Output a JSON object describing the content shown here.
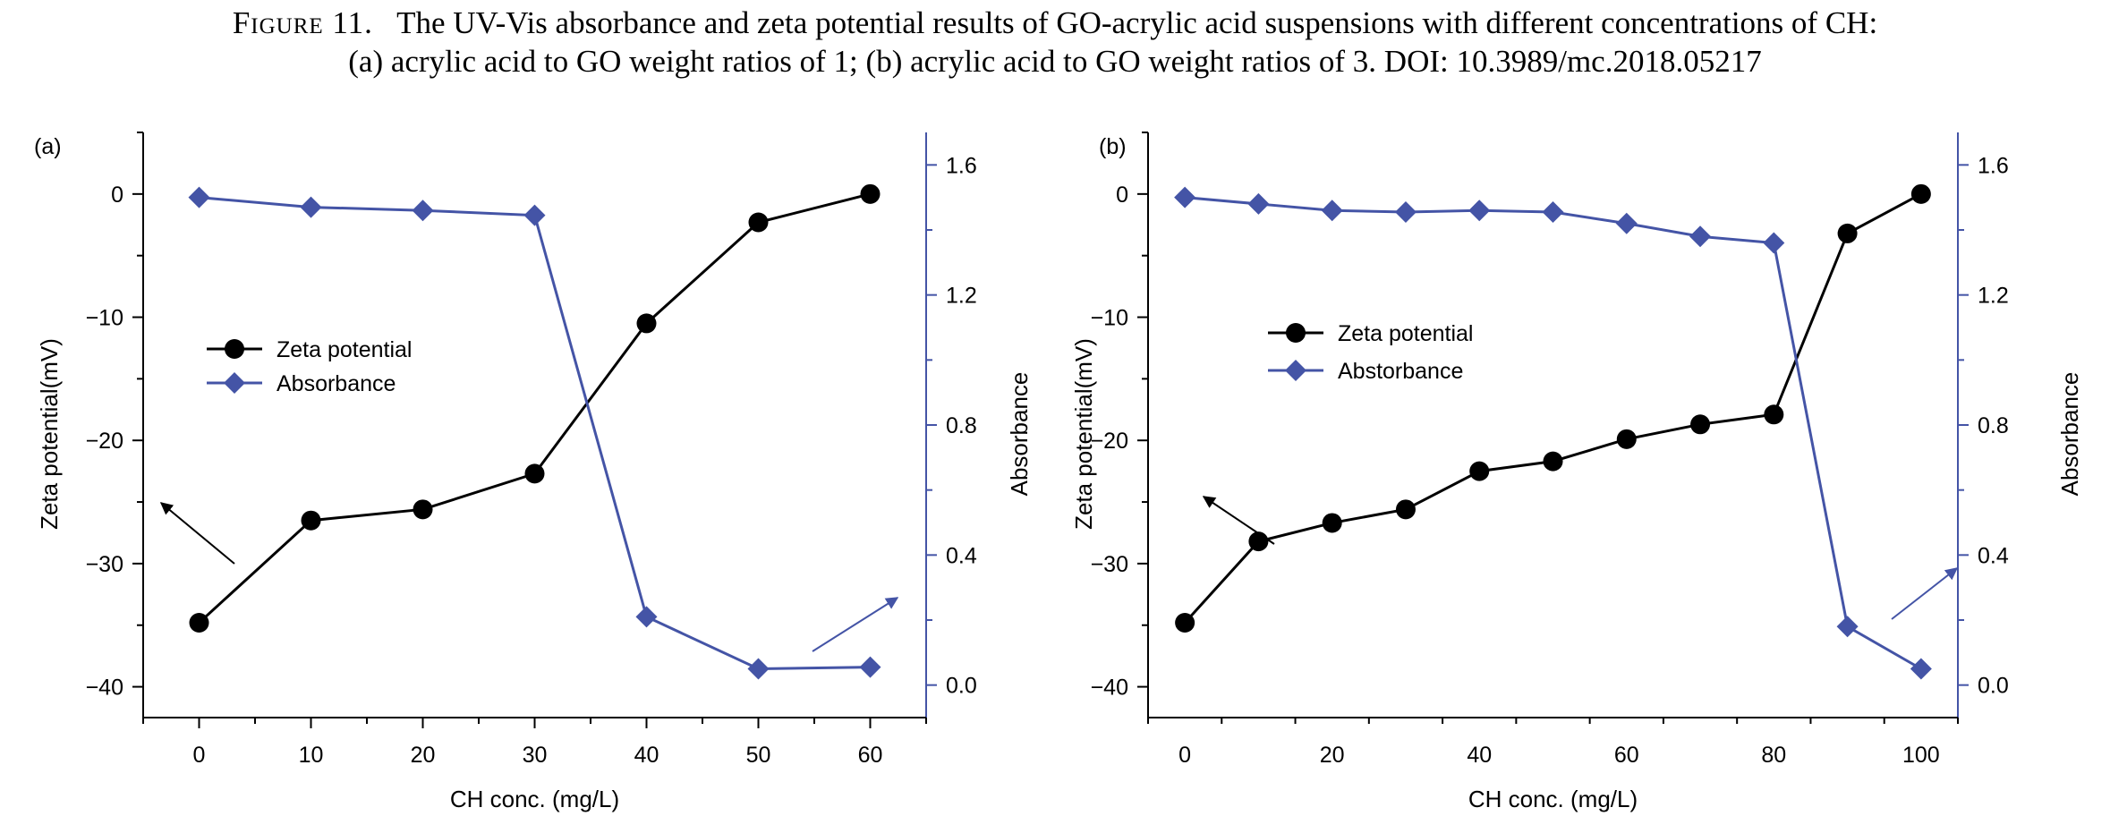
{
  "caption": {
    "figure_label": "Figure 11.",
    "line1": "The UV-Vis absorbance and zeta potential results of GO-acrylic acid suspensions with different concentrations of CH:",
    "line2": "(a) acrylic acid to GO weight ratios of 1; (b) acrylic acid to GO weight ratios of 3. DOI: 10.3989/mc.2018.05217"
  },
  "colors": {
    "zeta": "#000000",
    "absorbance": "#4454a6",
    "axis": "#000000"
  },
  "chart_data": [
    {
      "type": "line",
      "panel_label": "(a)",
      "xlabel": "CH conc. (mg/L)",
      "ylabel": "Zeta potential(mV)",
      "y2label": "Absorbance",
      "xlim": [
        -5,
        65
      ],
      "ylim": [
        -42.5,
        5
      ],
      "y2lim": [
        -0.1,
        1.7
      ],
      "xticks": [
        0,
        10,
        20,
        30,
        40,
        50,
        60
      ],
      "yticks": [
        0,
        -10,
        -20,
        -30,
        -40
      ],
      "y2ticks": [
        0.0,
        0.4,
        0.8,
        1.2,
        1.6
      ],
      "legend_position": "upper-left",
      "series": [
        {
          "name": "Zeta potential",
          "axis": "left",
          "marker": "circle",
          "x": [
            0,
            10,
            20,
            30,
            40,
            50,
            60
          ],
          "y": [
            -34.8,
            -26.5,
            -25.6,
            -22.7,
            -10.5,
            -2.3,
            0
          ]
        },
        {
          "name": "Absorbance",
          "axis": "right",
          "marker": "diamond",
          "x": [
            0,
            10,
            20,
            30,
            40,
            50,
            60
          ],
          "y": [
            1.5,
            1.47,
            1.46,
            1.445,
            0.21,
            0.05,
            0.055
          ]
        }
      ]
    },
    {
      "type": "line",
      "panel_label": "(b)",
      "xlabel": "CH conc. (mg/L)",
      "ylabel": "Zeta potential(mV)",
      "y2label": "Absorbance",
      "xlim": [
        -5,
        105
      ],
      "ylim": [
        -42.5,
        5
      ],
      "y2lim": [
        -0.1,
        1.7
      ],
      "xticks": [
        0,
        20,
        40,
        60,
        80,
        100
      ],
      "yticks": [
        0,
        -10,
        -20,
        -30,
        -40
      ],
      "y2ticks": [
        0.0,
        0.4,
        0.8,
        1.2,
        1.6
      ],
      "legend_position": "upper-left",
      "series": [
        {
          "name": "Zeta potential",
          "axis": "left",
          "marker": "circle",
          "x": [
            0,
            10,
            20,
            30,
            40,
            50,
            60,
            70,
            80,
            90,
            100
          ],
          "y": [
            -34.8,
            -28.2,
            -26.7,
            -25.6,
            -22.5,
            -21.7,
            -19.9,
            -18.7,
            -17.9,
            -3.2,
            0
          ]
        },
        {
          "name": "Abstorbance",
          "axis": "right",
          "marker": "diamond",
          "x": [
            0,
            10,
            20,
            30,
            40,
            50,
            60,
            70,
            80,
            90,
            100
          ],
          "y": [
            1.5,
            1.48,
            1.46,
            1.455,
            1.46,
            1.455,
            1.42,
            1.38,
            1.36,
            0.18,
            0.05
          ]
        }
      ]
    }
  ]
}
